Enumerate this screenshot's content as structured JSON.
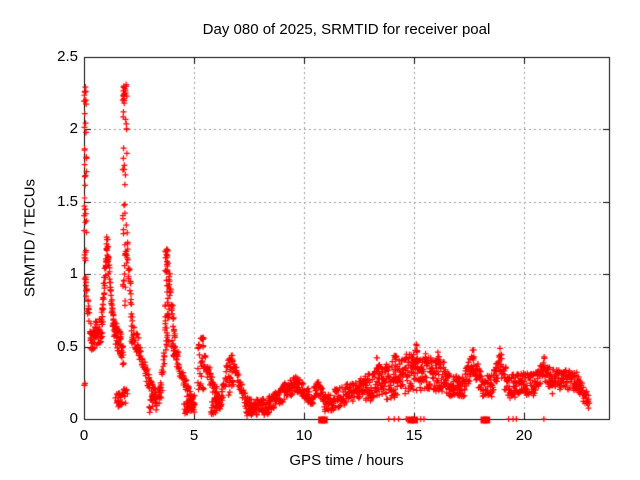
{
  "page": {
    "background": "#ffffff",
    "text_color": "#000000"
  },
  "chart_data": {
    "type": "scatter",
    "title": "Day 080 of 2025, SRMTID for receiver poal",
    "xlabel": "GPS time / hours",
    "ylabel": "SRMTID / TECUs",
    "xlim": [
      0,
      23.86
    ],
    "ylim": [
      0,
      2.5
    ],
    "x_ticks": [
      0,
      5,
      10,
      15,
      20
    ],
    "x_tick_labels": [
      "0",
      "5",
      "10",
      "15",
      "20"
    ],
    "y_ticks": [
      0,
      0.5,
      1,
      1.5,
      2,
      2.5
    ],
    "y_tick_labels": [
      "0",
      "0.5",
      "1",
      "1.5",
      "2",
      "2.5"
    ],
    "grid": {
      "x": [
        5,
        10,
        15,
        20
      ],
      "y": [
        0.5,
        1,
        1.5,
        2
      ],
      "style": "dotted",
      "color": "#9b9b9b"
    },
    "axis_color": "#000000",
    "marker": {
      "shape": "plus",
      "color": "#ff0000",
      "size": 7
    },
    "legend": "none",
    "series_name": "SRMTID",
    "segments_doc": "Dense scatter encoded as envelope segments. t=col: x uniform in [x0,x1], y uniform in [y0,y1]. t=band: mean drifts y0->y1 with jitter +/-j. t=bump: mean rises y0->yp at center then back, jitter +/-j. n = point count.",
    "segments": [
      {
        "t": "col",
        "x0": 0.0,
        "x1": 0.12,
        "y0": 0.88,
        "y1": 2.3,
        "n": 34
      },
      {
        "t": "col",
        "x0": 0.0,
        "x1": 0.1,
        "y0": 2.18,
        "y1": 2.3,
        "n": 8
      },
      {
        "t": "col",
        "x0": 0.0,
        "x1": 0.06,
        "y0": 0.2,
        "y1": 0.26,
        "n": 3
      },
      {
        "t": "band",
        "x0": 0.05,
        "x1": 0.3,
        "y0": 0.95,
        "y1": 0.6,
        "j": 0.1,
        "n": 22
      },
      {
        "t": "band",
        "x0": 0.3,
        "x1": 0.8,
        "y0": 0.55,
        "y1": 0.62,
        "j": 0.09,
        "n": 55
      },
      {
        "t": "band",
        "x0": 0.8,
        "x1": 1.05,
        "y0": 0.62,
        "y1": 1.22,
        "j": 0.06,
        "n": 40
      },
      {
        "t": "band",
        "x0": 1.05,
        "x1": 1.35,
        "y0": 1.22,
        "y1": 0.62,
        "j": 0.06,
        "n": 40
      },
      {
        "t": "band",
        "x0": 1.35,
        "x1": 1.8,
        "y0": 0.62,
        "y1": 0.45,
        "j": 0.09,
        "n": 50
      },
      {
        "t": "band",
        "x0": 1.45,
        "x1": 1.95,
        "y0": 0.12,
        "y1": 0.16,
        "j": 0.06,
        "n": 30
      },
      {
        "t": "col",
        "x0": 1.76,
        "x1": 1.95,
        "y0": 0.75,
        "y1": 2.3,
        "n": 48
      },
      {
        "t": "col",
        "x0": 1.8,
        "x1": 1.93,
        "y0": 2.18,
        "y1": 2.32,
        "n": 10
      },
      {
        "t": "band",
        "x0": 1.95,
        "x1": 2.2,
        "y0": 1.3,
        "y1": 0.6,
        "j": 0.08,
        "n": 26
      },
      {
        "t": "band",
        "x0": 2.15,
        "x1": 2.5,
        "y0": 0.6,
        "y1": 0.5,
        "j": 0.07,
        "n": 30
      },
      {
        "t": "band",
        "x0": 2.5,
        "x1": 3.3,
        "y0": 0.45,
        "y1": 0.12,
        "j": 0.06,
        "n": 55
      },
      {
        "t": "band",
        "x0": 2.95,
        "x1": 3.55,
        "y0": 0.1,
        "y1": 0.18,
        "j": 0.06,
        "n": 30
      },
      {
        "t": "band",
        "x0": 3.45,
        "x1": 3.7,
        "y0": 0.2,
        "y1": 0.45,
        "j": 0.06,
        "n": 16
      },
      {
        "t": "col",
        "x0": 3.68,
        "x1": 3.88,
        "y0": 0.5,
        "y1": 1.17,
        "n": 42
      },
      {
        "t": "col",
        "x0": 3.7,
        "x1": 3.82,
        "y0": 1.05,
        "y1": 1.18,
        "n": 8
      },
      {
        "t": "band",
        "x0": 3.88,
        "x1": 4.15,
        "y0": 0.95,
        "y1": 0.48,
        "j": 0.06,
        "n": 26
      },
      {
        "t": "band",
        "x0": 4.0,
        "x1": 4.3,
        "y0": 0.48,
        "y1": 0.4,
        "j": 0.07,
        "n": 24
      },
      {
        "t": "band",
        "x0": 4.3,
        "x1": 5.0,
        "y0": 0.35,
        "y1": 0.08,
        "j": 0.05,
        "n": 45
      },
      {
        "t": "band",
        "x0": 4.55,
        "x1": 5.05,
        "y0": 0.06,
        "y1": 0.12,
        "j": 0.05,
        "n": 30
      },
      {
        "t": "col",
        "x0": 5.15,
        "x1": 5.45,
        "y0": 0.2,
        "y1": 0.57,
        "n": 30
      },
      {
        "t": "band",
        "x0": 5.45,
        "x1": 6.2,
        "y0": 0.4,
        "y1": 0.08,
        "j": 0.06,
        "n": 50
      },
      {
        "t": "band",
        "x0": 5.75,
        "x1": 6.25,
        "y0": 0.06,
        "y1": 0.12,
        "j": 0.05,
        "n": 28
      },
      {
        "t": "band",
        "x0": 6.25,
        "x1": 6.5,
        "y0": 0.15,
        "y1": 0.32,
        "j": 0.06,
        "n": 16
      },
      {
        "t": "col",
        "x0": 6.5,
        "x1": 6.8,
        "y0": 0.16,
        "y1": 0.5,
        "n": 30
      },
      {
        "t": "band",
        "x0": 6.8,
        "x1": 7.5,
        "y0": 0.38,
        "y1": 0.07,
        "j": 0.05,
        "n": 45
      },
      {
        "t": "band",
        "x0": 7.4,
        "x1": 8.4,
        "y0": 0.08,
        "y1": 0.08,
        "j": 0.06,
        "n": 85
      },
      {
        "t": "band",
        "x0": 8.4,
        "x1": 9.7,
        "y0": 0.1,
        "y1": 0.25,
        "j": 0.06,
        "n": 100
      },
      {
        "t": "band",
        "x0": 9.7,
        "x1": 10.35,
        "y0": 0.24,
        "y1": 0.14,
        "j": 0.05,
        "n": 50
      },
      {
        "t": "bump",
        "x0": 10.35,
        "x1": 10.9,
        "y0": 0.14,
        "yp": 0.22,
        "j": 0.05,
        "n": 40
      },
      {
        "t": "band",
        "x0": 10.9,
        "x1": 11.4,
        "y0": 0.11,
        "y1": 0.12,
        "j": 0.06,
        "n": 40
      },
      {
        "t": "band",
        "x0": 11.4,
        "x1": 12.7,
        "y0": 0.14,
        "y1": 0.22,
        "j": 0.07,
        "n": 100
      },
      {
        "t": "band",
        "x0": 12.7,
        "x1": 13.7,
        "y0": 0.2,
        "y1": 0.28,
        "j": 0.1,
        "n": 85
      },
      {
        "t": "col",
        "x0": 13.3,
        "x1": 13.45,
        "y0": 0.3,
        "y1": 0.44,
        "n": 8
      },
      {
        "t": "band",
        "x0": 13.7,
        "x1": 14.6,
        "y0": 0.26,
        "y1": 0.3,
        "j": 0.13,
        "n": 80
      },
      {
        "t": "col",
        "x0": 14.05,
        "x1": 14.2,
        "y0": 0.34,
        "y1": 0.48,
        "n": 8
      },
      {
        "t": "band",
        "x0": 14.6,
        "x1": 15.6,
        "y0": 0.32,
        "y1": 0.33,
        "j": 0.13,
        "n": 90
      },
      {
        "t": "col",
        "x0": 14.95,
        "x1": 15.15,
        "y0": 0.38,
        "y1": 0.52,
        "n": 12
      },
      {
        "t": "band",
        "x0": 15.6,
        "x1": 16.4,
        "y0": 0.32,
        "y1": 0.28,
        "j": 0.11,
        "n": 70
      },
      {
        "t": "col",
        "x0": 16.0,
        "x1": 16.15,
        "y0": 0.34,
        "y1": 0.48,
        "n": 8
      },
      {
        "t": "band",
        "x0": 16.4,
        "x1": 17.3,
        "y0": 0.24,
        "y1": 0.22,
        "j": 0.08,
        "n": 75
      },
      {
        "t": "bump",
        "x0": 17.3,
        "x1": 18.1,
        "y0": 0.24,
        "yp": 0.4,
        "j": 0.09,
        "n": 65
      },
      {
        "t": "band",
        "x0": 18.1,
        "x1": 18.55,
        "y0": 0.22,
        "y1": 0.24,
        "j": 0.07,
        "n": 35
      },
      {
        "t": "bump",
        "x0": 18.55,
        "x1": 19.25,
        "y0": 0.24,
        "yp": 0.4,
        "j": 0.09,
        "n": 55
      },
      {
        "t": "band",
        "x0": 19.25,
        "x1": 20.45,
        "y0": 0.22,
        "y1": 0.25,
        "j": 0.08,
        "n": 95
      },
      {
        "t": "bump",
        "x0": 20.45,
        "x1": 21.3,
        "y0": 0.24,
        "yp": 0.36,
        "j": 0.08,
        "n": 70
      },
      {
        "t": "band",
        "x0": 21.3,
        "x1": 22.4,
        "y0": 0.28,
        "y1": 0.26,
        "j": 0.07,
        "n": 85
      },
      {
        "t": "band",
        "x0": 22.4,
        "x1": 22.95,
        "y0": 0.26,
        "y1": 0.1,
        "j": 0.06,
        "n": 40
      }
    ],
    "zero_markers": {
      "plus_x": [
        13.85,
        14.1,
        14.3,
        14.65,
        15.3,
        15.45,
        19.3,
        19.5,
        19.65,
        20.9
      ],
      "square_x": [
        10.8,
        10.92,
        14.85,
        15.02,
        18.18,
        18.3
      ]
    }
  }
}
